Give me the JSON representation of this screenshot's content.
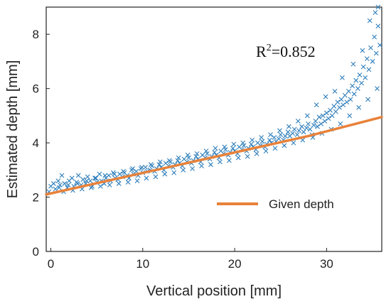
{
  "chart_data": {
    "type": "scatter",
    "xlabel": "Vertical position [mm]",
    "ylabel": "Estimated depth [mm]",
    "xlim": [
      -0.5,
      36
    ],
    "ylim": [
      0,
      9
    ],
    "xticks": [
      0,
      10,
      20,
      30
    ],
    "yticks": [
      0,
      2,
      4,
      6,
      8
    ],
    "grid": false,
    "legend_position": "bottom-right",
    "annotation": {
      "base": "R",
      "sup": "2",
      "rest": "=0.852"
    },
    "series": [
      {
        "name": "",
        "type": "scatter",
        "marker": "x",
        "color": "#2E7EBB",
        "points": [
          [
            -0.2,
            2.2
          ],
          [
            0,
            2.4
          ],
          [
            0.3,
            2.5
          ],
          [
            0.5,
            2.3
          ],
          [
            0.8,
            2.6
          ],
          [
            1,
            2.45
          ],
          [
            1.2,
            2.8
          ],
          [
            1.5,
            2.5
          ],
          [
            1.8,
            2.35
          ],
          [
            2,
            2.6
          ],
          [
            2.3,
            2.7
          ],
          [
            2.5,
            2.4
          ],
          [
            2.8,
            2.55
          ],
          [
            3,
            2.8
          ],
          [
            3.3,
            2.45
          ],
          [
            3.5,
            2.65
          ],
          [
            3.8,
            2.5
          ],
          [
            4,
            2.75
          ],
          [
            4.3,
            2.6
          ],
          [
            4.5,
            2.4
          ],
          [
            4.8,
            2.7
          ],
          [
            5,
            2.55
          ],
          [
            5.3,
            2.85
          ],
          [
            5.5,
            2.6
          ],
          [
            5.8,
            2.5
          ],
          [
            6,
            2.7
          ],
          [
            6.3,
            2.8
          ],
          [
            6.5,
            2.6
          ],
          [
            6.8,
            2.9
          ],
          [
            7,
            2.7
          ],
          [
            7.3,
            2.65
          ],
          [
            7.5,
            2.85
          ],
          [
            7.8,
            2.75
          ],
          [
            8,
            2.9
          ],
          [
            8.3,
            2.8
          ],
          [
            8.5,
            2.7
          ],
          [
            8.8,
            3
          ],
          [
            9,
            2.85
          ],
          [
            9.3,
            2.95
          ],
          [
            9.5,
            2.8
          ],
          [
            9.8,
            3.05
          ],
          [
            10,
            2.9
          ],
          [
            10.3,
            3.1
          ],
          [
            10.5,
            2.95
          ],
          [
            10.8,
            3
          ],
          [
            11,
            3.15
          ],
          [
            11.3,
            2.95
          ],
          [
            11.5,
            3.05
          ],
          [
            11.8,
            3.2
          ],
          [
            12,
            3.1
          ],
          [
            12.3,
            3.0
          ],
          [
            12.5,
            3.25
          ],
          [
            12.8,
            3.15
          ],
          [
            13,
            3.3
          ],
          [
            13.3,
            3.1
          ],
          [
            13.5,
            3.2
          ],
          [
            13.8,
            3.35
          ],
          [
            14,
            3.25
          ],
          [
            14.3,
            3.15
          ],
          [
            14.5,
            3.4
          ],
          [
            14.8,
            3.3
          ],
          [
            15,
            3.45
          ],
          [
            15.3,
            3.25
          ],
          [
            15.5,
            3.35
          ],
          [
            15.8,
            3.5
          ],
          [
            16,
            3.4
          ],
          [
            16.3,
            3.3
          ],
          [
            16.5,
            3.55
          ],
          [
            16.8,
            3.45
          ],
          [
            17,
            3.6
          ],
          [
            17.3,
            3.4
          ],
          [
            17.5,
            3.5
          ],
          [
            17.8,
            3.65
          ],
          [
            18,
            3.55
          ],
          [
            18.3,
            3.45
          ],
          [
            18.5,
            3.7
          ],
          [
            18.8,
            3.6
          ],
          [
            19,
            3.75
          ],
          [
            19.3,
            3.55
          ],
          [
            19.5,
            3.65
          ],
          [
            19.8,
            3.8
          ],
          [
            20,
            3.7
          ],
          [
            20.3,
            3.6
          ],
          [
            20.5,
            3.85
          ],
          [
            20.8,
            3.75
          ],
          [
            21,
            3.9
          ],
          [
            21.3,
            3.7
          ],
          [
            21.5,
            3.8
          ],
          [
            21.8,
            3.95
          ],
          [
            22,
            3.85
          ],
          [
            22.3,
            3.75
          ],
          [
            22.5,
            4.0
          ],
          [
            22.8,
            3.9
          ],
          [
            23,
            4.05
          ],
          [
            23.3,
            3.85
          ],
          [
            23.5,
            3.95
          ],
          [
            23.8,
            4.1
          ],
          [
            24,
            4.0
          ],
          [
            24.3,
            4.2
          ],
          [
            24.5,
            4.05
          ],
          [
            24.8,
            4.15
          ],
          [
            25,
            4.3
          ],
          [
            25.3,
            4.1
          ],
          [
            25.5,
            4.25
          ],
          [
            25.8,
            4.4
          ],
          [
            26,
            4.25
          ],
          [
            26.3,
            4.35
          ],
          [
            26.5,
            4.5
          ],
          [
            26.8,
            4.3
          ],
          [
            27,
            4.45
          ],
          [
            27.3,
            4.6
          ],
          [
            27.5,
            4.4
          ],
          [
            27.8,
            4.55
          ],
          [
            28,
            4.7
          ],
          [
            28.2,
            4.5
          ],
          [
            28.4,
            4.3
          ],
          [
            28.6,
            4.65
          ],
          [
            28.8,
            4.8
          ],
          [
            29,
            4.6
          ],
          [
            29.2,
            4.95
          ],
          [
            29.4,
            4.7
          ],
          [
            29.6,
            5.0
          ],
          [
            29.8,
            4.8
          ],
          [
            30,
            5.1
          ],
          [
            30.2,
            4.9
          ],
          [
            30.4,
            5.2
          ],
          [
            30.6,
            5.0
          ],
          [
            30.8,
            5.35
          ],
          [
            31,
            5.15
          ],
          [
            31.2,
            5.5
          ],
          [
            31.4,
            5.3
          ],
          [
            31.6,
            5.6
          ],
          [
            31.8,
            5.4
          ],
          [
            32,
            5.75
          ],
          [
            32.2,
            5.5
          ],
          [
            32.4,
            5.9
          ],
          [
            32.6,
            5.6
          ],
          [
            32.8,
            6.1
          ],
          [
            33,
            5.8
          ],
          [
            33.2,
            6.3
          ],
          [
            33.4,
            6.0
          ],
          [
            33.6,
            6.5
          ],
          [
            33.8,
            6.2
          ],
          [
            34,
            6.8
          ],
          [
            34.2,
            6.4
          ],
          [
            34.4,
            7.1
          ],
          [
            34.6,
            6.7
          ],
          [
            34.8,
            7.5
          ],
          [
            35,
            7.0
          ],
          [
            35.2,
            7.9
          ],
          [
            35.4,
            7.3
          ],
          [
            35.6,
            8.3
          ],
          [
            35.8,
            7.6
          ],
          [
            35.3,
            8.8
          ],
          [
            35.6,
            9.0
          ],
          [
            34.7,
            8.5
          ],
          [
            33.9,
            7.4
          ],
          [
            32.9,
            6.9
          ],
          [
            31.7,
            6.4
          ],
          [
            30.9,
            5.9
          ],
          [
            29.9,
            5.7
          ],
          [
            28.9,
            5.4
          ],
          [
            27.9,
            5.0
          ],
          [
            26.9,
            4.8
          ],
          [
            25.9,
            4.6
          ],
          [
            24.9,
            4.45
          ],
          [
            23.9,
            4.3
          ],
          [
            22.9,
            4.2
          ],
          [
            21.9,
            4.1
          ],
          [
            20.9,
            4.0
          ],
          [
            19.9,
            3.95
          ],
          [
            18.9,
            3.85
          ],
          [
            17.9,
            3.8
          ],
          [
            16.9,
            3.7
          ],
          [
            15.9,
            3.6
          ],
          [
            14.9,
            3.55
          ],
          [
            13.9,
            3.45
          ],
          [
            12.9,
            3.35
          ],
          [
            11.9,
            3.3
          ],
          [
            10.9,
            3.2
          ],
          [
            9.9,
            3.1
          ],
          [
            8.9,
            3.05
          ],
          [
            7.9,
            2.95
          ],
          [
            6.9,
            2.85
          ],
          [
            5.9,
            2.8
          ],
          [
            4.9,
            2.7
          ],
          [
            3.9,
            2.6
          ],
          [
            2.9,
            2.5
          ],
          [
            1.9,
            2.45
          ],
          [
            0.9,
            2.35
          ],
          [
            1.4,
            2.2
          ],
          [
            2.4,
            2.25
          ],
          [
            3.4,
            2.3
          ],
          [
            4.4,
            2.35
          ],
          [
            5.4,
            2.4
          ],
          [
            6.4,
            2.45
          ],
          [
            7.4,
            2.5
          ],
          [
            8.4,
            2.55
          ],
          [
            9.4,
            2.6
          ],
          [
            10.4,
            2.7
          ],
          [
            11.4,
            2.75
          ],
          [
            12.4,
            2.85
          ],
          [
            13.4,
            2.9
          ],
          [
            14.4,
            3.0
          ],
          [
            15.4,
            3.05
          ],
          [
            16.4,
            3.15
          ],
          [
            17.4,
            3.2
          ],
          [
            18.4,
            3.3
          ],
          [
            19.4,
            3.35
          ],
          [
            20.4,
            3.45
          ],
          [
            21.4,
            3.5
          ],
          [
            22.4,
            3.6
          ],
          [
            23.4,
            3.7
          ],
          [
            24.4,
            3.8
          ],
          [
            25.4,
            3.9
          ],
          [
            26.4,
            4.0
          ],
          [
            27.4,
            4.1
          ],
          [
            28.5,
            4.2
          ],
          [
            29.5,
            4.35
          ],
          [
            30.5,
            4.5
          ],
          [
            31.5,
            4.7
          ],
          [
            32.5,
            5.0
          ],
          [
            33.5,
            5.3
          ],
          [
            34.5,
            5.6
          ],
          [
            35.5,
            6.0
          ]
        ]
      },
      {
        "name": "Given depth",
        "type": "line",
        "color": "#E8823A",
        "points": [
          [
            -0.5,
            2.1
          ],
          [
            28,
            4.25
          ],
          [
            36,
            4.95
          ]
        ]
      }
    ]
  }
}
